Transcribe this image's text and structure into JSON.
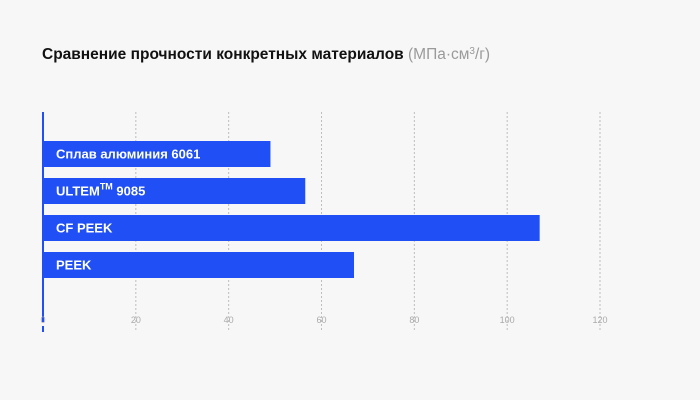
{
  "chart_data": {
    "type": "bar",
    "orientation": "horizontal",
    "title": "Сравнение прочности конкретных материалов",
    "unit_prefix": "(МПа·см",
    "unit_sup": "3",
    "unit_suffix": "/г)",
    "categories": [
      {
        "name": "Сплав алюминия 6061"
      },
      {
        "name": "ULTEM",
        "sup": "TM",
        "suffix": " 9085"
      },
      {
        "name": "CF PEEK"
      },
      {
        "name": "PEEK"
      }
    ],
    "values": [
      49,
      56.5,
      107,
      67
    ],
    "xlim": [
      0,
      120
    ],
    "xticks": [
      0,
      20,
      40,
      60,
      80,
      100,
      120
    ],
    "grid": true,
    "legend": "none",
    "colors": {
      "bar": "#1f4ff5",
      "axis": "#1f4ff5",
      "grid": "#bdbdbd",
      "tick": "#aaaaaa",
      "title": "#111111",
      "unit": "#9a9a9a"
    }
  }
}
